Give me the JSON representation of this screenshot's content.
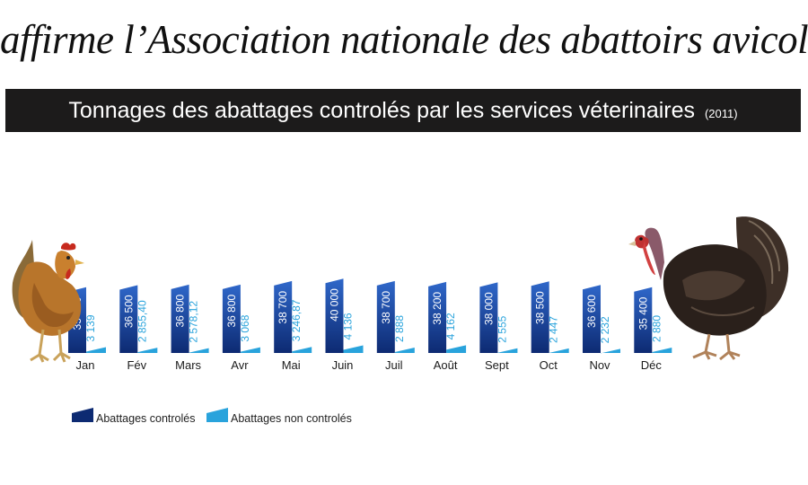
{
  "headline": "affirme l’Association nationale des abattoirs avicoles",
  "colors": {
    "controlled_dark": "#0d2a72",
    "controlled_light": "#2f67c9",
    "uncontrolled": "#29a3dc",
    "title_bar": "#1c1b1b"
  },
  "chart_data": {
    "type": "bar",
    "title": "Tonnages des abattages controlés par les services véterinaires",
    "title_note": "(2011)",
    "categories": [
      "Jan",
      "Fév",
      "Mars",
      "Avr",
      "Mai",
      "Juin",
      "Juil",
      "Août",
      "Sept",
      "Oct",
      "Nov",
      "Déc"
    ],
    "series": [
      {
        "name": "Abattages controlés",
        "values": [
          35400,
          36500,
          36800,
          36800,
          38700,
          40000,
          38700,
          38200,
          38000,
          38500,
          36600,
          35400
        ],
        "labels": [
          "35 400",
          "36 500",
          "36 800",
          "36 800",
          "38 700",
          "40 000",
          "38 700",
          "38 200",
          "38 000",
          "38 500",
          "36 600",
          "35 400"
        ]
      },
      {
        "name": "Abattages non controlés",
        "values": [
          3139,
          2855.4,
          2578.12,
          3068,
          3246.87,
          4136,
          2888,
          4162,
          2555,
          2447,
          2232,
          2880
        ],
        "labels": [
          "3 139",
          "2 855,40",
          "2 578,12",
          "3 068",
          "3 246,87",
          "4 136",
          "2 888",
          "4 162",
          "2 555",
          "2 447",
          "2 232",
          "2 880"
        ]
      }
    ],
    "legend_position": "bottom-left",
    "grid": false
  }
}
